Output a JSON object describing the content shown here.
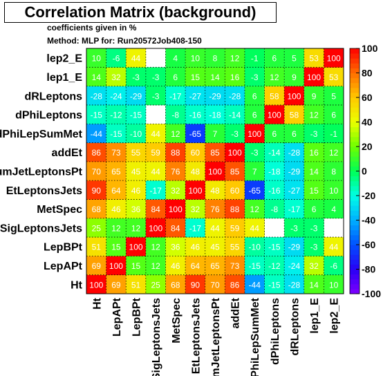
{
  "chart_data": {
    "type": "heatmap",
    "title": "Correlation Matrix (background)",
    "subtitle_lines": [
      "coefficients given in %",
      "Method: MLP for: Run20572Job408-150"
    ],
    "variables": [
      "Ht",
      "LepAPt",
      "LepBPt",
      "SigLeptonsJets",
      "MetSpec",
      "EtLeptonsJets",
      "SumJetLeptonsPt",
      "addEt",
      "dPhiLepSumMet",
      "dPhiLeptons",
      "dRLeptons",
      "lep1_E",
      "lep2_E"
    ],
    "x_tick_labels": [
      "Ht",
      "LepAPt",
      "LepBPt",
      "SigLeptonsJets",
      "MetSpec",
      "EtLeptonsJets",
      "SumJetLeptonsPt",
      "addEt",
      "dPhiLepSumMet",
      "dPhiLeptons",
      "dRLeptons",
      "lep1_E",
      "lep2_E"
    ],
    "y_tick_labels": [
      "Ht",
      "LepAPt",
      "LepBPt",
      "SigLeptonsJets",
      "MetSpec",
      "EtLeptonsJets",
      "SumJetLeptonsPt",
      "addEt",
      "dPhiLepSumMet",
      "dPhiLeptons",
      "dRLeptons",
      "lep1_E",
      "lep2_E"
    ],
    "matrix": [
      [
        100,
        69,
        51,
        25,
        68,
        90,
        70,
        86,
        -44,
        -15,
        -28,
        14,
        10
      ],
      [
        69,
        100,
        15,
        12,
        46,
        64,
        65,
        73,
        -15,
        -12,
        -24,
        32,
        -6
      ],
      [
        51,
        15,
        100,
        12,
        36,
        46,
        45,
        55,
        -10,
        -15,
        -29,
        -3,
        44
      ],
      [
        25,
        12,
        12,
        100,
        84,
        -17,
        44,
        59,
        44,
        null,
        -3,
        -3,
        null
      ],
      [
        68,
        46,
        36,
        84,
        100,
        32,
        76,
        88,
        12,
        -8,
        -17,
        6,
        4
      ],
      [
        90,
        64,
        46,
        -17,
        32,
        100,
        48,
        60,
        -65,
        -16,
        -27,
        15,
        10
      ],
      [
        70,
        65,
        45,
        44,
        76,
        48,
        100,
        85,
        7,
        -18,
        -29,
        14,
        8
      ],
      [
        86,
        73,
        55,
        59,
        88,
        60,
        85,
        100,
        -3,
        -14,
        -28,
        16,
        12
      ],
      [
        -44,
        -15,
        -10,
        44,
        12,
        -65,
        7,
        -3,
        100,
        6,
        6,
        -3,
        -1
      ],
      [
        -15,
        -12,
        -15,
        null,
        -8,
        -16,
        -18,
        -14,
        6,
        100,
        58,
        12,
        6
      ],
      [
        -28,
        -24,
        -29,
        -3,
        -17,
        -27,
        -29,
        -28,
        6,
        58,
        100,
        9,
        5
      ],
      [
        14,
        32,
        -3,
        -3,
        6,
        15,
        14,
        16,
        -3,
        12,
        9,
        100,
        53
      ],
      [
        10,
        -6,
        44,
        null,
        4,
        10,
        8,
        12,
        -1,
        6,
        5,
        53,
        100
      ]
    ],
    "zlim": [
      -100,
      100
    ],
    "colorbar_ticks": [
      -100,
      -80,
      -60,
      -40,
      -20,
      0,
      20,
      40,
      60,
      80,
      100
    ],
    "colors": {
      "low": "#7f00ff",
      "zero": "#00ff55",
      "high": "#ff0000",
      "cell_text": "#ffffff",
      "grid": "#000000"
    },
    "grid": true
  }
}
